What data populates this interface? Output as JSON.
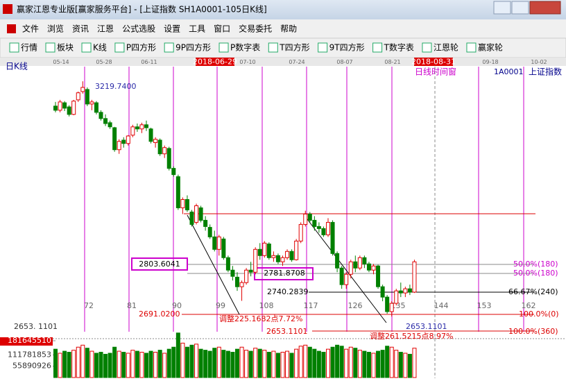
{
  "window": {
    "title": "赢家江恩专业版[赢家服务平台] - [上证指数  SH1A0001-105日K线]"
  },
  "menu": [
    "文件",
    "浏览",
    "资讯",
    "江恩",
    "公式选股",
    "设置",
    "工具",
    "窗口",
    "交易委托",
    "帮助"
  ],
  "toolbar": [
    "行情",
    "板块",
    "K线",
    "P四方形",
    "9P四方形",
    "P数字表",
    "T四方形",
    "9T四方形",
    "T数字表",
    "江恩轮",
    "赢家轮"
  ],
  "chart_data": {
    "type": "candlestick",
    "label": "日K线",
    "window_label": "日线时间窗",
    "code": "1A0001",
    "name": "上证指数",
    "dates": [
      "05-14",
      "05-28",
      "06-11",
      "2018-06-29",
      "07-10",
      "07-24",
      "08-07",
      "08-21",
      "2018-08-31",
      "09-18",
      "10-02"
    ],
    "counts": [
      72,
      81,
      90,
      99,
      108,
      117,
      126,
      135,
      144,
      153,
      162
    ],
    "ylim": [
      2630,
      3240
    ],
    "price_tick": {
      "value": 2653.1101,
      "label": "2653. 1101"
    },
    "up_color": "#e00000",
    "down_color": "#008000",
    "ohlc": [
      [
        3160,
        3170,
        3145,
        3150
      ],
      [
        3150,
        3175,
        3145,
        3170
      ],
      [
        3168,
        3172,
        3148,
        3155
      ],
      [
        3158,
        3162,
        3135,
        3140
      ],
      [
        3140,
        3175,
        3138,
        3172
      ],
      [
        3175,
        3195,
        3170,
        3192
      ],
      [
        3195,
        3219.74,
        3190,
        3205
      ],
      [
        3200,
        3205,
        3160,
        3165
      ],
      [
        3165,
        3175,
        3150,
        3170
      ],
      [
        3168,
        3172,
        3140,
        3145
      ],
      [
        3145,
        3150,
        3125,
        3130
      ],
      [
        3130,
        3140,
        3112,
        3118
      ],
      [
        3120,
        3125,
        3105,
        3110
      ],
      [
        3108,
        3110,
        3050,
        3055
      ],
      [
        3055,
        3080,
        3045,
        3075
      ],
      [
        3078,
        3085,
        3060,
        3070
      ],
      [
        3070,
        3090,
        3065,
        3088
      ],
      [
        3090,
        3115,
        3085,
        3110
      ],
      [
        3110,
        3118,
        3098,
        3105
      ],
      [
        3105,
        3120,
        3095,
        3115
      ],
      [
        3115,
        3125,
        3100,
        3108
      ],
      [
        3105,
        3108,
        3070,
        3075
      ],
      [
        3072,
        3085,
        3060,
        3080
      ],
      [
        3078,
        3082,
        3040,
        3045
      ],
      [
        3045,
        3065,
        3035,
        3060
      ],
      [
        3058,
        3062,
        3005,
        3010
      ],
      [
        3010,
        3015,
        2990,
        2995
      ],
      [
        2990,
        2995,
        2910,
        2915
      ],
      [
        2915,
        2940,
        2900,
        2935
      ],
      [
        2935,
        2945,
        2905,
        2910
      ],
      [
        2905,
        2910,
        2870,
        2875
      ],
      [
        2880,
        2925,
        2875,
        2920
      ],
      [
        2915,
        2920,
        2880,
        2885
      ],
      [
        2885,
        2895,
        2860,
        2870
      ],
      [
        2868,
        2875,
        2840,
        2845
      ],
      [
        2845,
        2860,
        2810,
        2815
      ],
      [
        2815,
        2850,
        2800,
        2845
      ],
      [
        2840,
        2845,
        2790,
        2795
      ],
      [
        2795,
        2800,
        2760,
        2765
      ],
      [
        2765,
        2775,
        2740,
        2750
      ],
      [
        2748,
        2760,
        2715,
        2725
      ],
      [
        2725,
        2740,
        2691.02,
        2735
      ],
      [
        2735,
        2770,
        2730,
        2765
      ],
      [
        2765,
        2785,
        2750,
        2760
      ],
      [
        2760,
        2820,
        2755,
        2815
      ],
      [
        2815,
        2830,
        2790,
        2800
      ],
      [
        2800,
        2835,
        2795,
        2830
      ],
      [
        2828,
        2832,
        2790,
        2795
      ],
      [
        2795,
        2810,
        2785,
        2800
      ],
      [
        2800,
        2805,
        2780,
        2785
      ],
      [
        2785,
        2800,
        2775,
        2795
      ],
      [
        2795,
        2815,
        2790,
        2810
      ],
      [
        2810,
        2815,
        2785,
        2790
      ],
      [
        2790,
        2840,
        2788,
        2835
      ],
      [
        2835,
        2880,
        2830,
        2875
      ],
      [
        2875,
        2908,
        2870,
        2900
      ],
      [
        2900,
        2905,
        2880,
        2885
      ],
      [
        2885,
        2895,
        2860,
        2870
      ],
      [
        2870,
        2880,
        2855,
        2865
      ],
      [
        2865,
        2870,
        2845,
        2850
      ],
      [
        2850,
        2890,
        2845,
        2880
      ],
      [
        2880,
        2885,
        2800,
        2805
      ],
      [
        2805,
        2810,
        2760,
        2770
      ],
      [
        2770,
        2775,
        2720,
        2730
      ],
      [
        2730,
        2760,
        2720,
        2755
      ],
      [
        2755,
        2790,
        2745,
        2785
      ],
      [
        2785,
        2800,
        2760,
        2770
      ],
      [
        2770,
        2800,
        2765,
        2795
      ],
      [
        2795,
        2800,
        2770,
        2780
      ],
      [
        2780,
        2785,
        2760,
        2765
      ],
      [
        2765,
        2780,
        2755,
        2775
      ],
      [
        2775,
        2778,
        2720,
        2725
      ],
      [
        2725,
        2730,
        2690,
        2700
      ],
      [
        2700,
        2705,
        2660,
        2665
      ],
      [
        2665,
        2690,
        2653.11,
        2685
      ],
      [
        2685,
        2720,
        2680,
        2715
      ],
      [
        2715,
        2735,
        2700,
        2710
      ],
      [
        2710,
        2725,
        2700,
        2720
      ],
      [
        2720,
        2730,
        2705,
        2712
      ],
      [
        2712,
        2790,
        2710,
        2785
      ]
    ],
    "volume_ylim": [
      0,
      181645510
    ],
    "volume_ticks": [
      181645510,
      111781853,
      55890926
    ],
    "volume": [
      140000000,
      120000000,
      130000000,
      125000000,
      135000000,
      150000000,
      160000000,
      145000000,
      130000000,
      120000000,
      125000000,
      115000000,
      120000000,
      150000000,
      130000000,
      125000000,
      120000000,
      135000000,
      130000000,
      125000000,
      120000000,
      130000000,
      125000000,
      135000000,
      120000000,
      140000000,
      150000000,
      220000000,
      170000000,
      150000000,
      160000000,
      165000000,
      140000000,
      135000000,
      130000000,
      145000000,
      150000000,
      135000000,
      130000000,
      125000000,
      140000000,
      150000000,
      135000000,
      130000000,
      145000000,
      140000000,
      135000000,
      125000000,
      130000000,
      120000000,
      125000000,
      130000000,
      120000000,
      140000000,
      155000000,
      160000000,
      150000000,
      140000000,
      130000000,
      125000000,
      140000000,
      150000000,
      160000000,
      155000000,
      140000000,
      150000000,
      145000000,
      135000000,
      130000000,
      125000000,
      120000000,
      130000000,
      135000000,
      155000000,
      150000000,
      135000000,
      125000000,
      120000000,
      115000000,
      145000000
    ],
    "annotations": [
      "3219.7400",
      "2803.6041",
      "2781.8708",
      "2740.2839",
      "2691.0200",
      "调整225.1682点7.72%",
      "2653.1101",
      "2653.1101",
      "调整261.5215点8.97%",
      "50.0%(180)",
      "50.0%(180)",
      "66.67%(240)",
      "100.0%(0)",
      "100.0%(360)"
    ]
  }
}
